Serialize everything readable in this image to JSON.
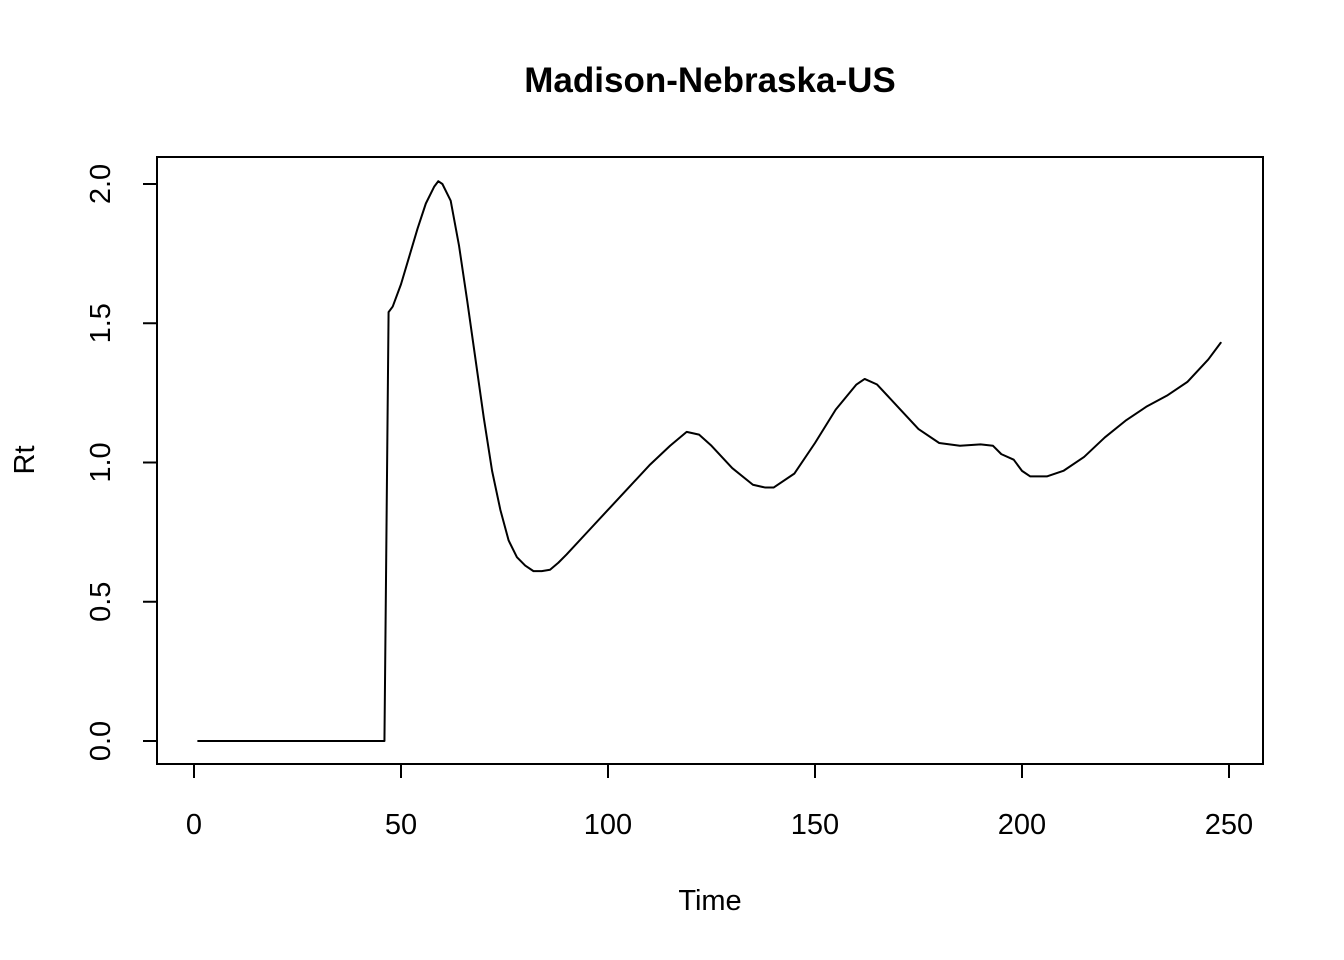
{
  "chart_data": {
    "type": "line",
    "title": "Madison-Nebraska-US",
    "xlabel": "Time",
    "ylabel": "Rt",
    "xlim": [
      1,
      248
    ],
    "ylim": [
      0,
      2.0
    ],
    "x_ticks": [
      0,
      50,
      100,
      150,
      200,
      250
    ],
    "y_ticks": [
      0.0,
      0.5,
      1.0,
      1.5,
      2.0
    ],
    "x_tick_labels": [
      "0",
      "50",
      "100",
      "150",
      "200",
      "250"
    ],
    "y_tick_labels": [
      "0.0",
      "0.5",
      "1.0",
      "1.5",
      "2.0"
    ],
    "grid": false,
    "legend": "none",
    "line_color": "#000000",
    "series": [
      {
        "x": [
          1,
          10,
          20,
          30,
          40,
          46,
          47,
          48,
          50,
          52,
          54,
          56,
          58,
          59,
          60,
          62,
          64,
          66,
          68,
          70,
          72,
          74,
          76,
          78,
          80,
          82,
          84,
          86,
          88,
          90,
          95,
          100,
          105,
          110,
          115,
          119,
          122,
          125,
          130,
          135,
          138,
          140,
          145,
          150,
          155,
          160,
          162,
          165,
          170,
          175,
          180,
          185,
          190,
          193,
          195,
          198,
          200,
          202,
          206,
          210,
          215,
          220,
          225,
          230,
          235,
          240,
          245,
          248
        ],
        "y": [
          0,
          0,
          0,
          0,
          0,
          0,
          1.54,
          1.56,
          1.64,
          1.74,
          1.84,
          1.93,
          1.99,
          2.01,
          2.0,
          1.94,
          1.78,
          1.58,
          1.37,
          1.16,
          0.97,
          0.83,
          0.72,
          0.66,
          0.63,
          0.61,
          0.61,
          0.615,
          0.64,
          0.67,
          0.75,
          0.83,
          0.91,
          0.99,
          1.06,
          1.11,
          1.1,
          1.06,
          0.98,
          0.92,
          0.91,
          0.91,
          0.96,
          1.07,
          1.19,
          1.28,
          1.3,
          1.28,
          1.2,
          1.12,
          1.07,
          1.06,
          1.065,
          1.06,
          1.03,
          1.01,
          0.97,
          0.95,
          0.95,
          0.97,
          1.02,
          1.09,
          1.15,
          1.2,
          1.24,
          1.29,
          1.37,
          1.43
        ]
      }
    ]
  }
}
